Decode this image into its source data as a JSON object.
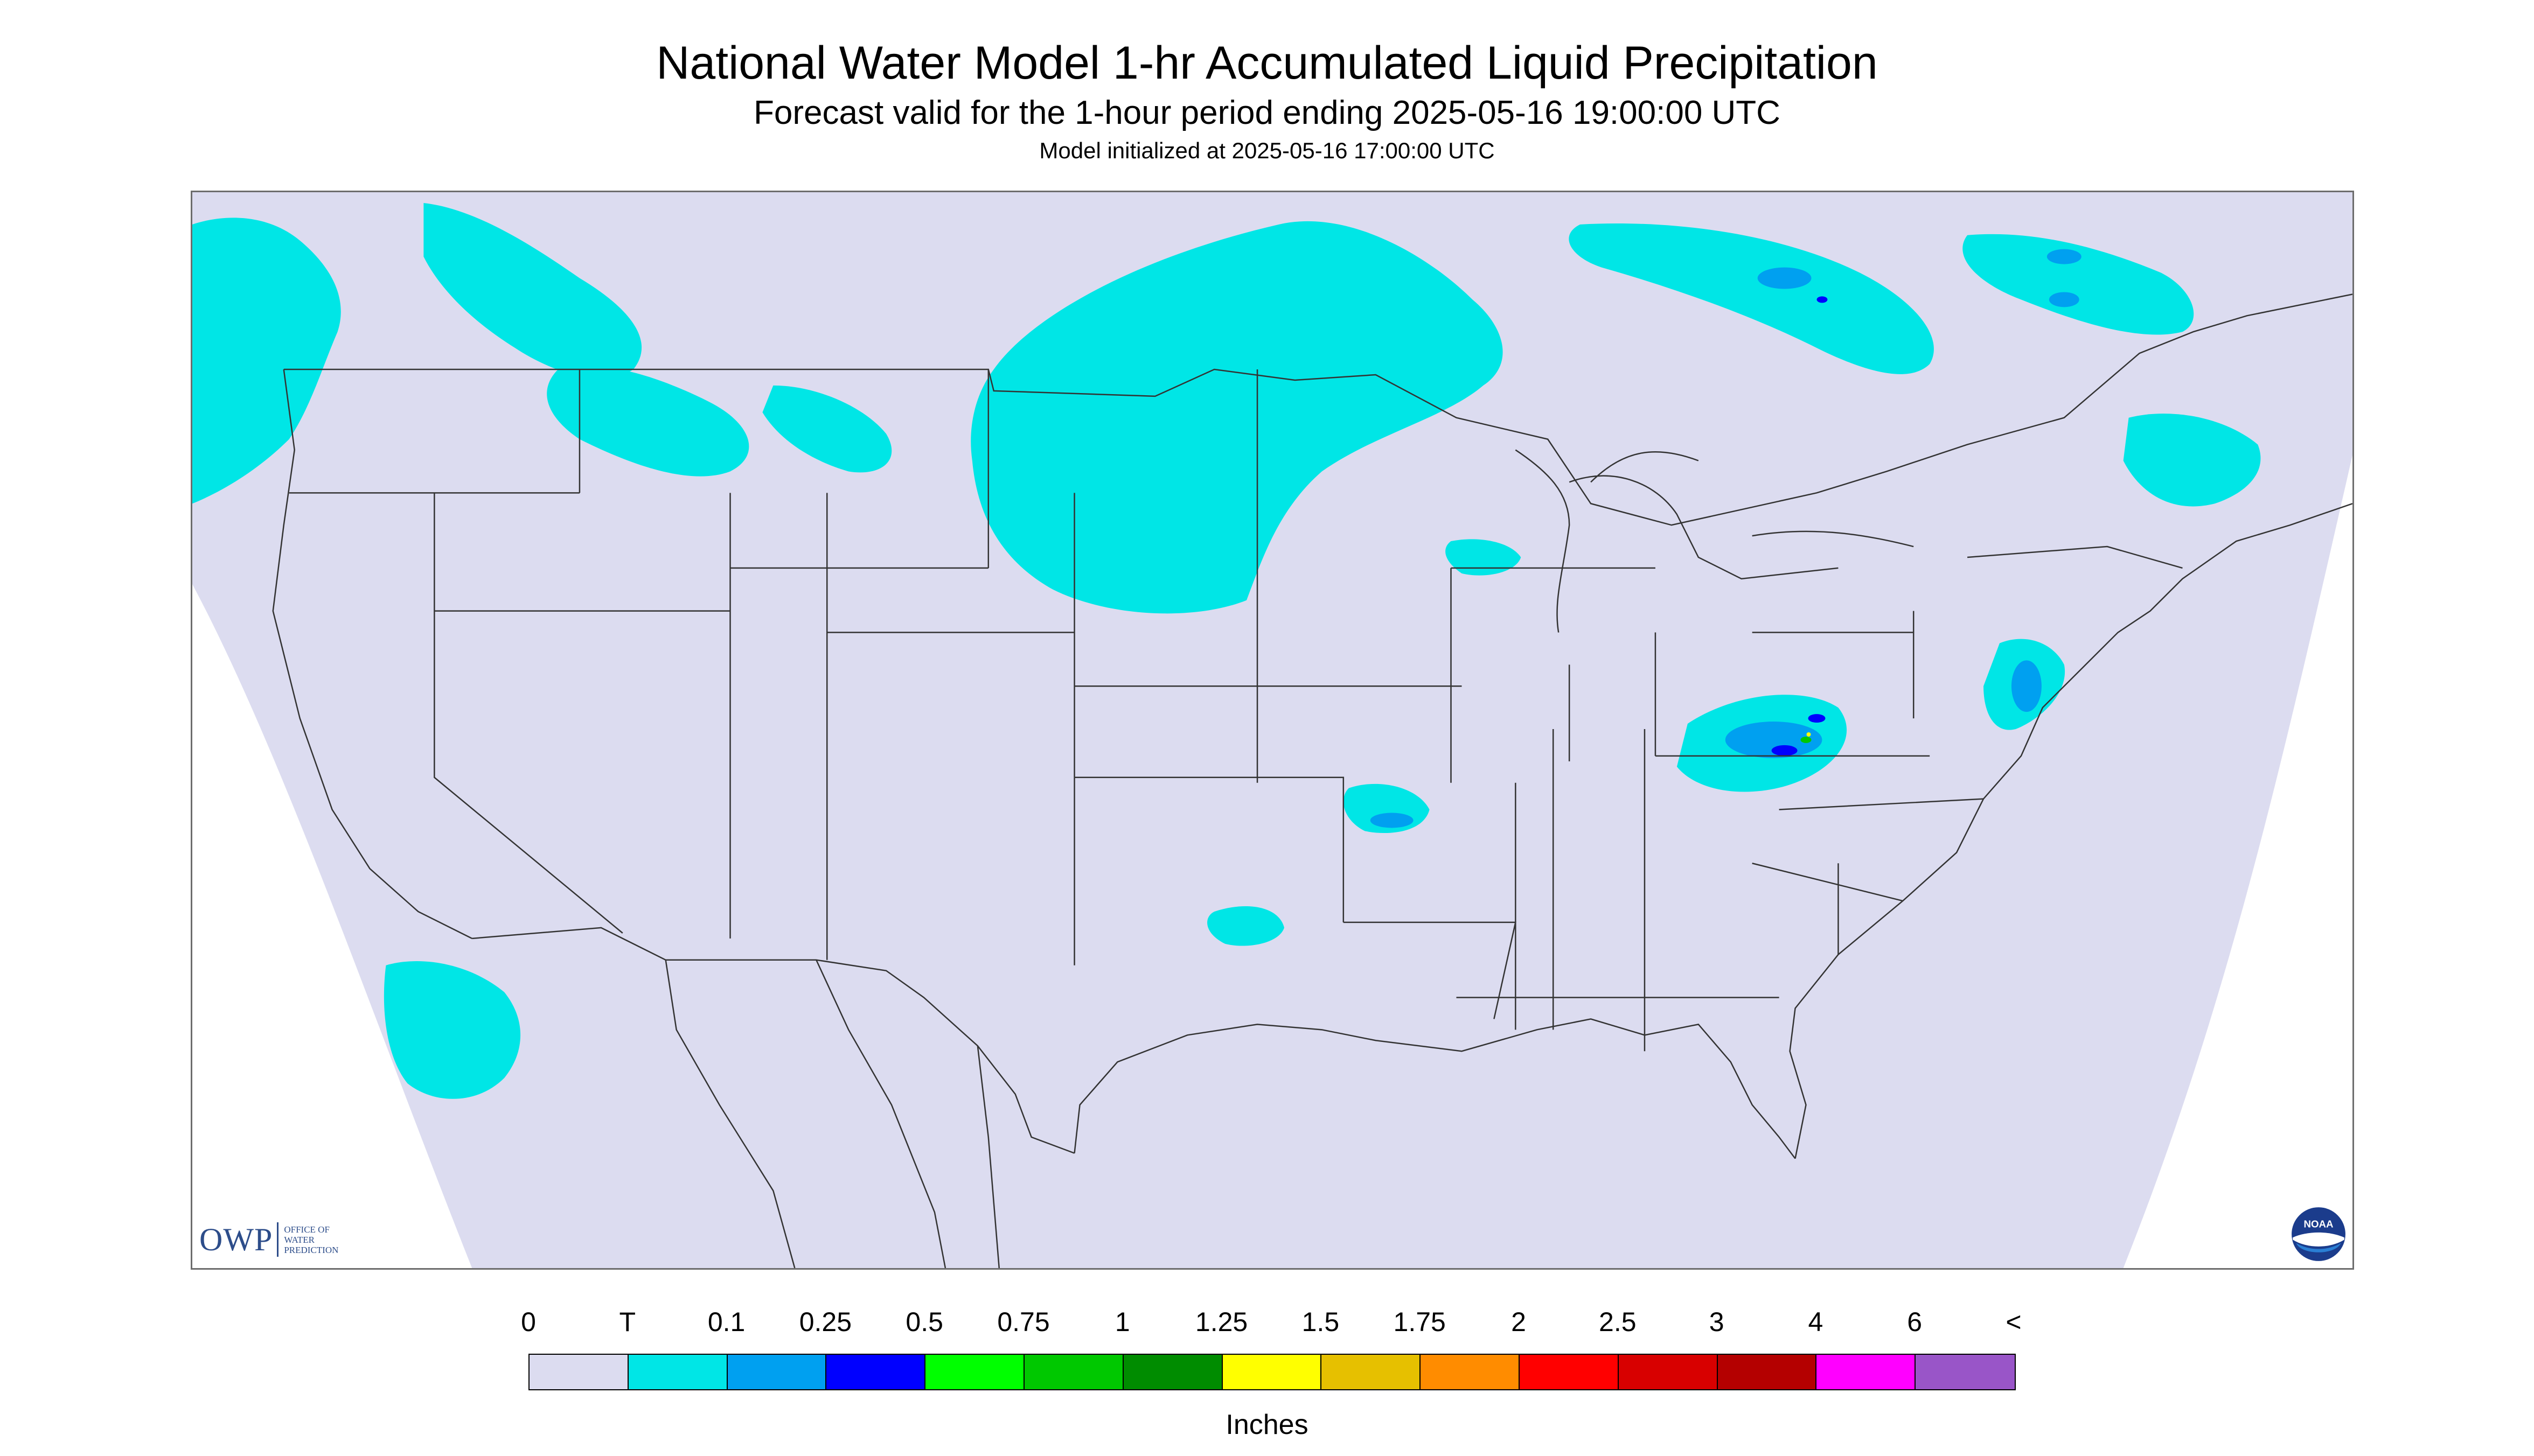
{
  "title": "National Water Model 1-hr Accumulated Liquid Precipitation",
  "subtitle": "Forecast valid for the 1-hour period ending 2025-05-16 19:00:00 UTC",
  "init_text": "Model initialized at 2025-05-16 17:00:00 UTC",
  "logos": {
    "owp_big": "OWP",
    "owp_small": "OFFICE OF\nWATER\nPREDICTION",
    "noaa_text": "NOAA"
  },
  "legend": {
    "unit_label": "Inches",
    "tick_labels": [
      "0",
      "T",
      "0.1",
      "0.25",
      "0.5",
      "0.75",
      "1",
      "1.25",
      "1.5",
      "1.75",
      "2",
      "2.5",
      "3",
      "4",
      "6",
      "<"
    ],
    "colors": [
      "#dcdcf0",
      "#00e6e6",
      "#00a0f0",
      "#0000ff",
      "#00ff00",
      "#00c800",
      "#008c00",
      "#ffff00",
      "#e6c000",
      "#ff8c00",
      "#ff0000",
      "#d80000",
      "#b40000",
      "#ff00ff",
      "#9955c8"
    ]
  },
  "map": {
    "domain_fill": "#dcdcf0",
    "outside_fill": "#ffffff",
    "boundary_color": "#333333",
    "precip_colors": {
      "trace": "#00e6e6",
      "light": "#00a0f0",
      "moderate": "#0000ff",
      "heavy": "#00c800",
      "extreme": "#ffff00"
    }
  }
}
